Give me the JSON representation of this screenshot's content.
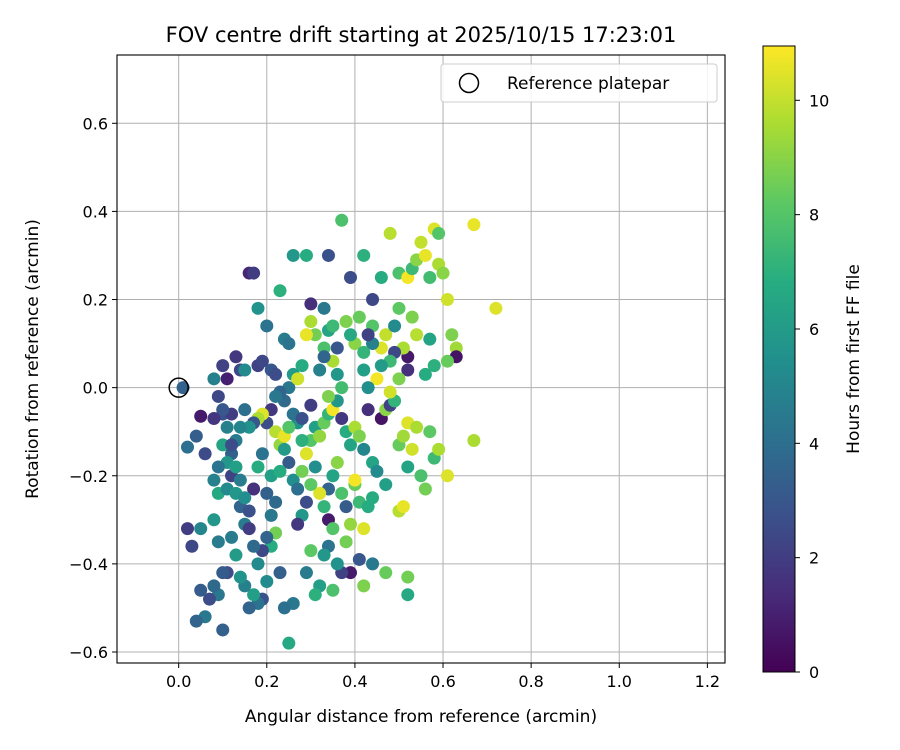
{
  "chart_data": {
    "type": "scatter",
    "title": "FOV centre drift starting at 2025/10/15 17:23:01",
    "xlabel": "Angular distance from reference (arcmin)",
    "ylabel": "Rotation from reference (arcmin)",
    "xlim": [
      -0.14,
      1.24
    ],
    "ylim": [
      -0.625,
      0.755
    ],
    "xticks": [
      0.0,
      0.2,
      0.4,
      0.6,
      0.8,
      1.0,
      1.2
    ],
    "xtick_labels": [
      "0.0",
      "0.2",
      "0.4",
      "0.6",
      "0.8",
      "1.0",
      "1.2"
    ],
    "yticks": [
      -0.6,
      -0.4,
      -0.2,
      0.0,
      0.2,
      0.4,
      0.6
    ],
    "ytick_labels": [
      "−0.6",
      "−0.4",
      "−0.2",
      "0.0",
      "0.2",
      "0.4",
      "0.6"
    ],
    "grid": true,
    "legend": {
      "position": "top-right",
      "entries": [
        "Reference platepar"
      ]
    },
    "reference_point": {
      "x": 0.0,
      "y": 0.0
    },
    "colorbar": {
      "label": "Hours from first FF file",
      "range": [
        0,
        10.95
      ],
      "ticks": [
        0,
        2,
        4,
        6,
        8,
        10
      ],
      "tick_labels": [
        "0",
        "2",
        "4",
        "6",
        "8",
        "10"
      ],
      "colormap": "viridis"
    },
    "points": [
      [
        0.01,
        0.0,
        3.5
      ],
      [
        0.05,
        -0.065,
        0.8
      ],
      [
        0.04,
        -0.11,
        3.3
      ],
      [
        0.02,
        -0.135,
        4.0
      ],
      [
        0.06,
        -0.15,
        2.5
      ],
      [
        0.08,
        0.02,
        4.8
      ],
      [
        0.1,
        0.05,
        2.2
      ],
      [
        0.11,
        0.02,
        1.0
      ],
      [
        0.1,
        -0.06,
        2.8
      ],
      [
        0.12,
        -0.06,
        2.0
      ],
      [
        0.13,
        0.07,
        1.8
      ],
      [
        0.14,
        0.04,
        2.4
      ],
      [
        0.15,
        0.04,
        5.2
      ],
      [
        0.16,
        0.26,
        1.2
      ],
      [
        0.17,
        0.26,
        2.0
      ],
      [
        0.18,
        0.05,
        2.2
      ],
      [
        0.19,
        0.06,
        2.4
      ],
      [
        0.2,
        0.14,
        4.2
      ],
      [
        0.18,
        0.18,
        5.6
      ],
      [
        0.21,
        0.04,
        3.0
      ],
      [
        0.22,
        0.03,
        2.6
      ],
      [
        0.23,
        0.22,
        7.0
      ],
      [
        0.24,
        0.11,
        4.6
      ],
      [
        0.25,
        0.1,
        4.2
      ],
      [
        0.26,
        0.3,
        5.8
      ],
      [
        0.29,
        0.3,
        6.8
      ],
      [
        0.3,
        0.19,
        1.5
      ],
      [
        0.33,
        0.18,
        4.4
      ],
      [
        0.34,
        0.3,
        2.8
      ],
      [
        0.37,
        0.38,
        7.8
      ],
      [
        0.39,
        0.25,
        2.6
      ],
      [
        0.42,
        0.3,
        7.0
      ],
      [
        0.46,
        0.25,
        6.8
      ],
      [
        0.48,
        0.35,
        9.8
      ],
      [
        0.5,
        0.26,
        7.8
      ],
      [
        0.52,
        0.25,
        10.8
      ],
      [
        0.53,
        0.27,
        7.4
      ],
      [
        0.54,
        0.29,
        9.0
      ],
      [
        0.55,
        0.33,
        10.0
      ],
      [
        0.56,
        0.3,
        10.6
      ],
      [
        0.58,
        0.36,
        10.4
      ],
      [
        0.59,
        0.35,
        8.0
      ],
      [
        0.57,
        0.25,
        7.6
      ],
      [
        0.59,
        0.28,
        9.6
      ],
      [
        0.6,
        0.26,
        9.0
      ],
      [
        0.61,
        0.2,
        10.2
      ],
      [
        0.62,
        0.12,
        8.8
      ],
      [
        0.63,
        0.09,
        9.4
      ],
      [
        0.63,
        0.07,
        0.6
      ],
      [
        0.61,
        0.06,
        8.4
      ],
      [
        0.58,
        0.05,
        7.0
      ],
      [
        0.57,
        0.11,
        6.4
      ],
      [
        0.56,
        0.03,
        6.8
      ],
      [
        0.54,
        0.12,
        9.8
      ],
      [
        0.53,
        0.16,
        8.8
      ],
      [
        0.52,
        0.07,
        0.8
      ],
      [
        0.52,
        0.04,
        1.5
      ],
      [
        0.51,
        0.09,
        9.6
      ],
      [
        0.5,
        0.18,
        8.2
      ],
      [
        0.49,
        0.08,
        2.4
      ],
      [
        0.48,
        0.06,
        7.4
      ],
      [
        0.47,
        0.12,
        10.0
      ],
      [
        0.46,
        0.09,
        10.4
      ],
      [
        0.45,
        0.02,
        10.8
      ],
      [
        0.44,
        0.14,
        8.0
      ],
      [
        0.44,
        0.2,
        2.4
      ],
      [
        0.43,
        0.0,
        5.4
      ],
      [
        0.42,
        0.04,
        6.2
      ],
      [
        0.41,
        0.16,
        8.4
      ],
      [
        0.4,
        0.1,
        9.0
      ],
      [
        0.39,
        0.12,
        6.6
      ],
      [
        0.38,
        0.15,
        8.8
      ],
      [
        0.37,
        0.0,
        7.6
      ],
      [
        0.36,
        0.03,
        5.8
      ],
      [
        0.35,
        0.06,
        9.6
      ],
      [
        0.34,
        0.13,
        6.4
      ],
      [
        0.33,
        0.09,
        7.8
      ],
      [
        0.33,
        0.07,
        3.6
      ],
      [
        0.32,
        0.04,
        4.8
      ],
      [
        0.31,
        0.12,
        8.6
      ],
      [
        0.3,
        0.15,
        9.6
      ],
      [
        0.29,
        0.12,
        10.6
      ],
      [
        0.28,
        0.05,
        6.8
      ],
      [
        0.27,
        0.02,
        9.2
      ],
      [
        0.26,
        0.03,
        6.0
      ],
      [
        0.25,
        0.0,
        4.4
      ],
      [
        0.24,
        -0.03,
        3.8
      ],
      [
        0.23,
        -0.01,
        3.6
      ],
      [
        0.22,
        -0.02,
        4.4
      ],
      [
        0.21,
        -0.05,
        1.8
      ],
      [
        0.2,
        -0.08,
        2.6
      ],
      [
        0.19,
        -0.06,
        10.4
      ],
      [
        0.18,
        -0.07,
        9.6
      ],
      [
        0.17,
        -0.08,
        3.0
      ],
      [
        0.16,
        -0.09,
        5.6
      ],
      [
        0.15,
        -0.05,
        4.0
      ],
      [
        0.14,
        -0.09,
        5.0
      ],
      [
        0.13,
        -0.12,
        4.6
      ],
      [
        0.12,
        -0.15,
        3.4
      ],
      [
        0.11,
        -0.17,
        5.8
      ],
      [
        0.1,
        -0.13,
        6.4
      ],
      [
        0.09,
        -0.18,
        4.2
      ],
      [
        0.08,
        -0.21,
        4.8
      ],
      [
        0.09,
        -0.24,
        6.6
      ],
      [
        0.11,
        -0.23,
        5.2
      ],
      [
        0.12,
        -0.2,
        2.2
      ],
      [
        0.13,
        -0.24,
        5.8
      ],
      [
        0.14,
        -0.27,
        3.6
      ],
      [
        0.15,
        -0.31,
        4.6
      ],
      [
        0.16,
        -0.28,
        2.8
      ],
      [
        0.17,
        -0.23,
        1.5
      ],
      [
        0.18,
        -0.18,
        6.8
      ],
      [
        0.19,
        -0.15,
        4.2
      ],
      [
        0.2,
        -0.24,
        3.4
      ],
      [
        0.21,
        -0.2,
        6.2
      ],
      [
        0.22,
        -0.1,
        9.8
      ],
      [
        0.23,
        -0.13,
        9.2
      ],
      [
        0.24,
        -0.11,
        10.6
      ],
      [
        0.25,
        -0.17,
        3.2
      ],
      [
        0.26,
        -0.21,
        5.4
      ],
      [
        0.27,
        -0.23,
        4.0
      ],
      [
        0.28,
        -0.19,
        8.6
      ],
      [
        0.29,
        -0.15,
        10.4
      ],
      [
        0.3,
        -0.12,
        8.0
      ],
      [
        0.31,
        -0.09,
        6.2
      ],
      [
        0.32,
        -0.11,
        9.2
      ],
      [
        0.33,
        -0.08,
        8.4
      ],
      [
        0.34,
        -0.06,
        7.2
      ],
      [
        0.35,
        -0.05,
        10.8
      ],
      [
        0.36,
        -0.03,
        5.8
      ],
      [
        0.37,
        -0.07,
        1.8
      ],
      [
        0.38,
        -0.1,
        6.8
      ],
      [
        0.39,
        -0.13,
        6.4
      ],
      [
        0.4,
        -0.09,
        9.6
      ],
      [
        0.41,
        -0.11,
        8.8
      ],
      [
        0.42,
        -0.14,
        5.0
      ],
      [
        0.43,
        -0.05,
        1.5
      ],
      [
        0.44,
        -0.17,
        6.4
      ],
      [
        0.45,
        -0.19,
        5.2
      ],
      [
        0.46,
        -0.07,
        0.6
      ],
      [
        0.47,
        -0.05,
        9.0
      ],
      [
        0.48,
        -0.04,
        2.2
      ],
      [
        0.49,
        -0.03,
        7.2
      ],
      [
        0.5,
        -0.13,
        8.4
      ],
      [
        0.51,
        -0.11,
        9.4
      ],
      [
        0.52,
        -0.08,
        10.4
      ],
      [
        0.53,
        -0.14,
        10.2
      ],
      [
        0.54,
        -0.09,
        9.6
      ],
      [
        0.55,
        -0.2,
        7.8
      ],
      [
        0.56,
        -0.23,
        8.6
      ],
      [
        0.57,
        -0.1,
        8.2
      ],
      [
        0.58,
        -0.16,
        7.4
      ],
      [
        0.59,
        -0.14,
        9.6
      ],
      [
        0.61,
        -0.2,
        10.4
      ],
      [
        0.67,
        -0.12,
        9.6
      ],
      [
        0.67,
        0.37,
        10.6
      ],
      [
        0.72,
        0.18,
        10.4
      ],
      [
        0.52,
        -0.18,
        6.4
      ],
      [
        0.5,
        -0.28,
        9.8
      ],
      [
        0.51,
        -0.27,
        10.6
      ],
      [
        0.47,
        -0.42,
        8.4
      ],
      [
        0.52,
        -0.43,
        8.6
      ],
      [
        0.52,
        -0.47,
        6.6
      ],
      [
        0.44,
        -0.4,
        4.4
      ],
      [
        0.42,
        -0.45,
        8.8
      ],
      [
        0.41,
        -0.39,
        3.0
      ],
      [
        0.39,
        -0.42,
        0.8
      ],
      [
        0.38,
        -0.35,
        8.6
      ],
      [
        0.37,
        -0.42,
        2.2
      ],
      [
        0.36,
        -0.4,
        5.6
      ],
      [
        0.35,
        -0.46,
        7.8
      ],
      [
        0.34,
        -0.36,
        4.2
      ],
      [
        0.33,
        -0.38,
        5.8
      ],
      [
        0.32,
        -0.45,
        6.2
      ],
      [
        0.31,
        -0.47,
        7.0
      ],
      [
        0.3,
        -0.37,
        8.2
      ],
      [
        0.29,
        -0.42,
        4.6
      ],
      [
        0.28,
        -0.29,
        5.8
      ],
      [
        0.27,
        -0.31,
        1.8
      ],
      [
        0.26,
        -0.49,
        4.4
      ],
      [
        0.25,
        -0.58,
        6.6
      ],
      [
        0.24,
        -0.5,
        4.0
      ],
      [
        0.23,
        -0.42,
        3.4
      ],
      [
        0.22,
        -0.33,
        8.6
      ],
      [
        0.21,
        -0.36,
        6.8
      ],
      [
        0.2,
        -0.44,
        5.2
      ],
      [
        0.19,
        -0.48,
        2.8
      ],
      [
        0.18,
        -0.49,
        4.2
      ],
      [
        0.17,
        -0.47,
        6.2
      ],
      [
        0.16,
        -0.5,
        3.6
      ],
      [
        0.15,
        -0.45,
        4.8
      ],
      [
        0.14,
        -0.43,
        5.6
      ],
      [
        0.13,
        -0.38,
        6.0
      ],
      [
        0.12,
        -0.34,
        4.6
      ],
      [
        0.11,
        -0.42,
        2.6
      ],
      [
        0.1,
        -0.42,
        3.2
      ],
      [
        0.09,
        -0.47,
        4.4
      ],
      [
        0.08,
        -0.45,
        3.8
      ],
      [
        0.07,
        -0.48,
        2.6
      ],
      [
        0.06,
        -0.52,
        4.4
      ],
      [
        0.05,
        -0.46,
        3.2
      ],
      [
        0.04,
        -0.53,
        3.6
      ],
      [
        0.03,
        -0.36,
        2.4
      ],
      [
        0.02,
        -0.32,
        2.0
      ],
      [
        0.05,
        -0.32,
        5.0
      ],
      [
        0.08,
        -0.3,
        5.8
      ],
      [
        0.09,
        -0.35,
        4.6
      ],
      [
        0.1,
        -0.55,
        3.4
      ],
      [
        0.4,
        -0.22,
        8.4
      ],
      [
        0.41,
        -0.26,
        7.4
      ],
      [
        0.42,
        -0.32,
        10.4
      ],
      [
        0.43,
        -0.27,
        6.8
      ],
      [
        0.39,
        -0.31,
        9.2
      ],
      [
        0.38,
        -0.27,
        3.2
      ],
      [
        0.37,
        -0.24,
        7.8
      ],
      [
        0.36,
        -0.17,
        9.0
      ],
      [
        0.35,
        -0.2,
        6.4
      ],
      [
        0.34,
        -0.23,
        3.6
      ],
      [
        0.33,
        -0.27,
        7.2
      ],
      [
        0.32,
        -0.24,
        10.4
      ],
      [
        0.31,
        -0.18,
        5.4
      ],
      [
        0.3,
        -0.22,
        8.2
      ],
      [
        0.29,
        -0.26,
        2.6
      ],
      [
        0.28,
        -0.12,
        7.0
      ],
      [
        0.27,
        -0.08,
        5.6
      ],
      [
        0.26,
        -0.06,
        4.2
      ],
      [
        0.25,
        -0.09,
        8.0
      ],
      [
        0.24,
        -0.14,
        6.0
      ],
      [
        0.23,
        -0.19,
        6.8
      ],
      [
        0.22,
        -0.26,
        3.8
      ],
      [
        0.21,
        -0.29,
        4.4
      ],
      [
        0.2,
        -0.34,
        3.6
      ],
      [
        0.19,
        -0.37,
        2.4
      ],
      [
        0.18,
        -0.4,
        5.2
      ],
      [
        0.17,
        -0.36,
        3.8
      ],
      [
        0.16,
        -0.32,
        2.0
      ],
      [
        0.15,
        -0.25,
        5.4
      ],
      [
        0.14,
        -0.21,
        4.6
      ],
      [
        0.13,
        -0.18,
        6.2
      ],
      [
        0.12,
        -0.13,
        2.6
      ],
      [
        0.11,
        -0.09,
        4.8
      ],
      [
        0.1,
        -0.05,
        3.0
      ],
      [
        0.09,
        -0.02,
        2.4
      ],
      [
        0.08,
        -0.07,
        1.8
      ],
      [
        0.34,
        -0.3,
        0.8
      ],
      [
        0.35,
        -0.32,
        8.0
      ],
      [
        0.47,
        -0.22,
        6.2
      ],
      [
        0.44,
        -0.25,
        6.8
      ],
      [
        0.4,
        -0.21,
        10.8
      ],
      [
        0.46,
        0.05,
        6.0
      ],
      [
        0.48,
        -0.01,
        10.2
      ],
      [
        0.49,
        0.14,
        5.2
      ],
      [
        0.5,
        0.02,
        8.8
      ],
      [
        0.44,
        0.1,
        4.8
      ],
      [
        0.43,
        0.12,
        2.2
      ],
      [
        0.42,
        0.08,
        7.2
      ],
      [
        0.36,
        0.09,
        3.0
      ],
      [
        0.35,
        0.14,
        7.4
      ],
      [
        0.34,
        -0.02,
        8.8
      ],
      [
        0.3,
        -0.04,
        2.0
      ],
      [
        0.28,
        -0.07,
        2.8
      ],
      [
        0.27,
        0.02,
        10.2
      ]
    ]
  }
}
